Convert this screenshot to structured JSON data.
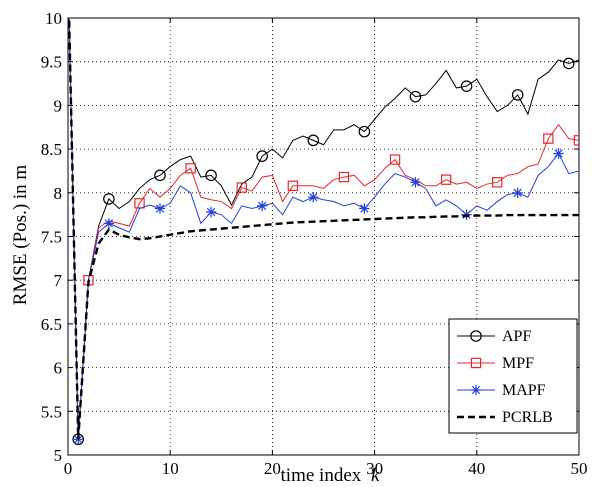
{
  "chart_data": {
    "type": "line",
    "title": "",
    "xlabel": "time index",
    "xlabel_var": "k",
    "ylabel": "RMSE (Pos.) in m",
    "xlim": [
      0,
      50
    ],
    "ylim": [
      5,
      10
    ],
    "xticks": [
      0,
      10,
      20,
      30,
      40,
      50
    ],
    "yticks": [
      5,
      5.5,
      6,
      6.5,
      7,
      7.5,
      8,
      8.5,
      9,
      9.5,
      10
    ],
    "ytick_labels": [
      "5",
      "5.5",
      "6",
      "6.5",
      "7",
      "7.5",
      "8",
      "8.5",
      "9",
      "9.5",
      "10"
    ],
    "grid": true,
    "legend_position": "bottom-right",
    "x": [
      0,
      1,
      2,
      3,
      4,
      5,
      6,
      7,
      8,
      9,
      10,
      11,
      12,
      13,
      14,
      15,
      16,
      17,
      18,
      19,
      20,
      21,
      22,
      23,
      24,
      25,
      26,
      27,
      28,
      29,
      30,
      31,
      32,
      33,
      34,
      35,
      36,
      37,
      38,
      39,
      40,
      41,
      42,
      43,
      44,
      45,
      46,
      47,
      48,
      49,
      50
    ],
    "series": [
      {
        "name": "APF",
        "color": "#000000",
        "dash": "solid",
        "marker": "circle",
        "values": [
          10.6,
          5.18,
          7.0,
          7.62,
          7.93,
          7.82,
          7.9,
          8.05,
          8.15,
          8.2,
          8.3,
          8.38,
          8.42,
          8.18,
          8.2,
          8.08,
          7.86,
          8.1,
          8.18,
          8.42,
          8.5,
          8.4,
          8.6,
          8.65,
          8.6,
          8.55,
          8.72,
          8.72,
          8.78,
          8.7,
          8.84,
          8.98,
          9.08,
          9.2,
          9.1,
          9.12,
          9.25,
          9.4,
          9.2,
          9.22,
          9.3,
          9.1,
          8.93,
          9.0,
          9.12,
          8.9,
          9.3,
          9.38,
          9.52,
          9.48,
          9.52
        ],
        "marker_x": [
          1,
          4,
          9,
          14,
          19,
          24,
          29,
          34,
          39,
          44,
          49
        ]
      },
      {
        "name": "MPF",
        "color": "#e8262b",
        "dash": "solid",
        "marker": "square",
        "values": [
          10.6,
          5.18,
          7.0,
          7.6,
          7.68,
          7.65,
          7.62,
          7.88,
          8.05,
          7.95,
          8.05,
          8.2,
          8.28,
          7.95,
          7.92,
          7.9,
          7.82,
          8.06,
          8.02,
          8.18,
          8.2,
          7.9,
          8.08,
          8.08,
          8.08,
          8.05,
          8.15,
          8.18,
          8.2,
          8.08,
          8.15,
          8.28,
          8.38,
          8.2,
          8.15,
          8.08,
          8.08,
          8.15,
          8.1,
          8.12,
          8.05,
          8.1,
          8.12,
          8.2,
          8.22,
          8.3,
          8.33,
          8.62,
          8.78,
          8.62,
          8.6
        ],
        "marker_x": [
          2,
          7,
          12,
          17,
          22,
          27,
          32,
          37,
          42,
          47,
          50
        ]
      },
      {
        "name": "MAPF",
        "color": "#1f3fe0",
        "dash": "solid",
        "marker": "star",
        "values": [
          10.6,
          5.18,
          7.0,
          7.55,
          7.65,
          7.6,
          7.55,
          7.82,
          7.86,
          7.82,
          7.88,
          8.08,
          8.0,
          7.65,
          7.78,
          7.75,
          7.65,
          7.85,
          7.82,
          7.85,
          7.88,
          7.75,
          7.95,
          7.9,
          7.95,
          7.92,
          7.9,
          7.85,
          7.88,
          7.82,
          7.95,
          8.1,
          8.22,
          8.18,
          8.12,
          8.05,
          7.85,
          7.92,
          7.85,
          7.75,
          7.85,
          7.8,
          7.9,
          7.98,
          8.0,
          7.95,
          8.2,
          8.3,
          8.45,
          8.22,
          8.25
        ],
        "marker_x": [
          1,
          4,
          9,
          14,
          19,
          24,
          29,
          34,
          39,
          44,
          48
        ]
      },
      {
        "name": "PCRLB",
        "color": "#000000",
        "dash": "dashed",
        "marker": "none",
        "values": [
          10.6,
          5.18,
          6.98,
          7.42,
          7.58,
          7.52,
          7.49,
          7.47,
          7.48,
          7.5,
          7.52,
          7.54,
          7.56,
          7.57,
          7.58,
          7.59,
          7.6,
          7.61,
          7.62,
          7.63,
          7.64,
          7.65,
          7.66,
          7.665,
          7.67,
          7.675,
          7.68,
          7.685,
          7.69,
          7.695,
          7.7,
          7.705,
          7.71,
          7.715,
          7.72,
          7.72,
          7.725,
          7.73,
          7.73,
          7.735,
          7.74,
          7.74,
          7.74,
          7.745,
          7.745,
          7.745,
          7.745,
          7.745,
          7.745,
          7.745,
          7.745
        ]
      }
    ]
  }
}
